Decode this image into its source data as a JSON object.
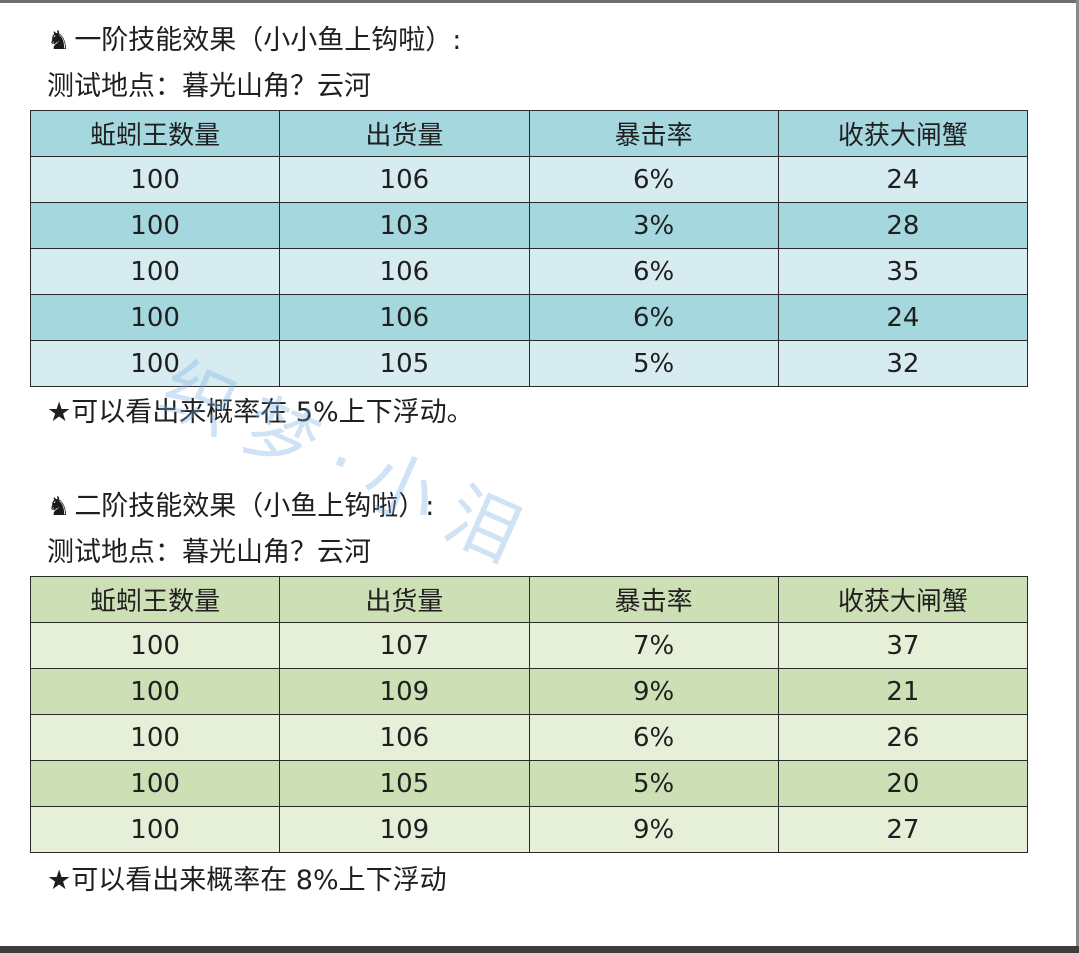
{
  "section1": {
    "title": "一阶技能效果（小小鱼上钩啦）:",
    "location": "测试地点：暮光山角？云河",
    "headers": [
      "蚯蚓王数量",
      "出货量",
      "暴击率",
      "收获大闸蟹"
    ],
    "rows": [
      [
        "100",
        "106",
        "6%",
        "24"
      ],
      [
        "100",
        "103",
        "3%",
        "28"
      ],
      [
        "100",
        "106",
        "6%",
        "35"
      ],
      [
        "100",
        "106",
        "6%",
        "24"
      ],
      [
        "100",
        "105",
        "5%",
        "32"
      ]
    ],
    "note": "★可以看出来概率在 5%上下浮动。"
  },
  "section2": {
    "title": "二阶技能效果（小鱼上钩啦）:",
    "location": "测试地点：暮光山角？云河",
    "headers": [
      "蚯蚓王数量",
      "出货量",
      "暴击率",
      "收获大闸蟹"
    ],
    "rows": [
      [
        "100",
        "107",
        "7%",
        "37"
      ],
      [
        "100",
        "109",
        "9%",
        "21"
      ],
      [
        "100",
        "106",
        "6%",
        "26"
      ],
      [
        "100",
        "105",
        "5%",
        "20"
      ],
      [
        "100",
        "109",
        "9%",
        "27"
      ]
    ],
    "note": "★可以看出来概率在 8%上下浮动"
  },
  "watermark": "织梦·小泪",
  "icons": {
    "section_marker": "chess-knight-icon"
  },
  "colors": {
    "table1_header": "#a5d7de",
    "table1_light_row": "#d7ecf0",
    "table2_header": "#cde0b5",
    "table2_light_row": "#e6f0d8"
  }
}
